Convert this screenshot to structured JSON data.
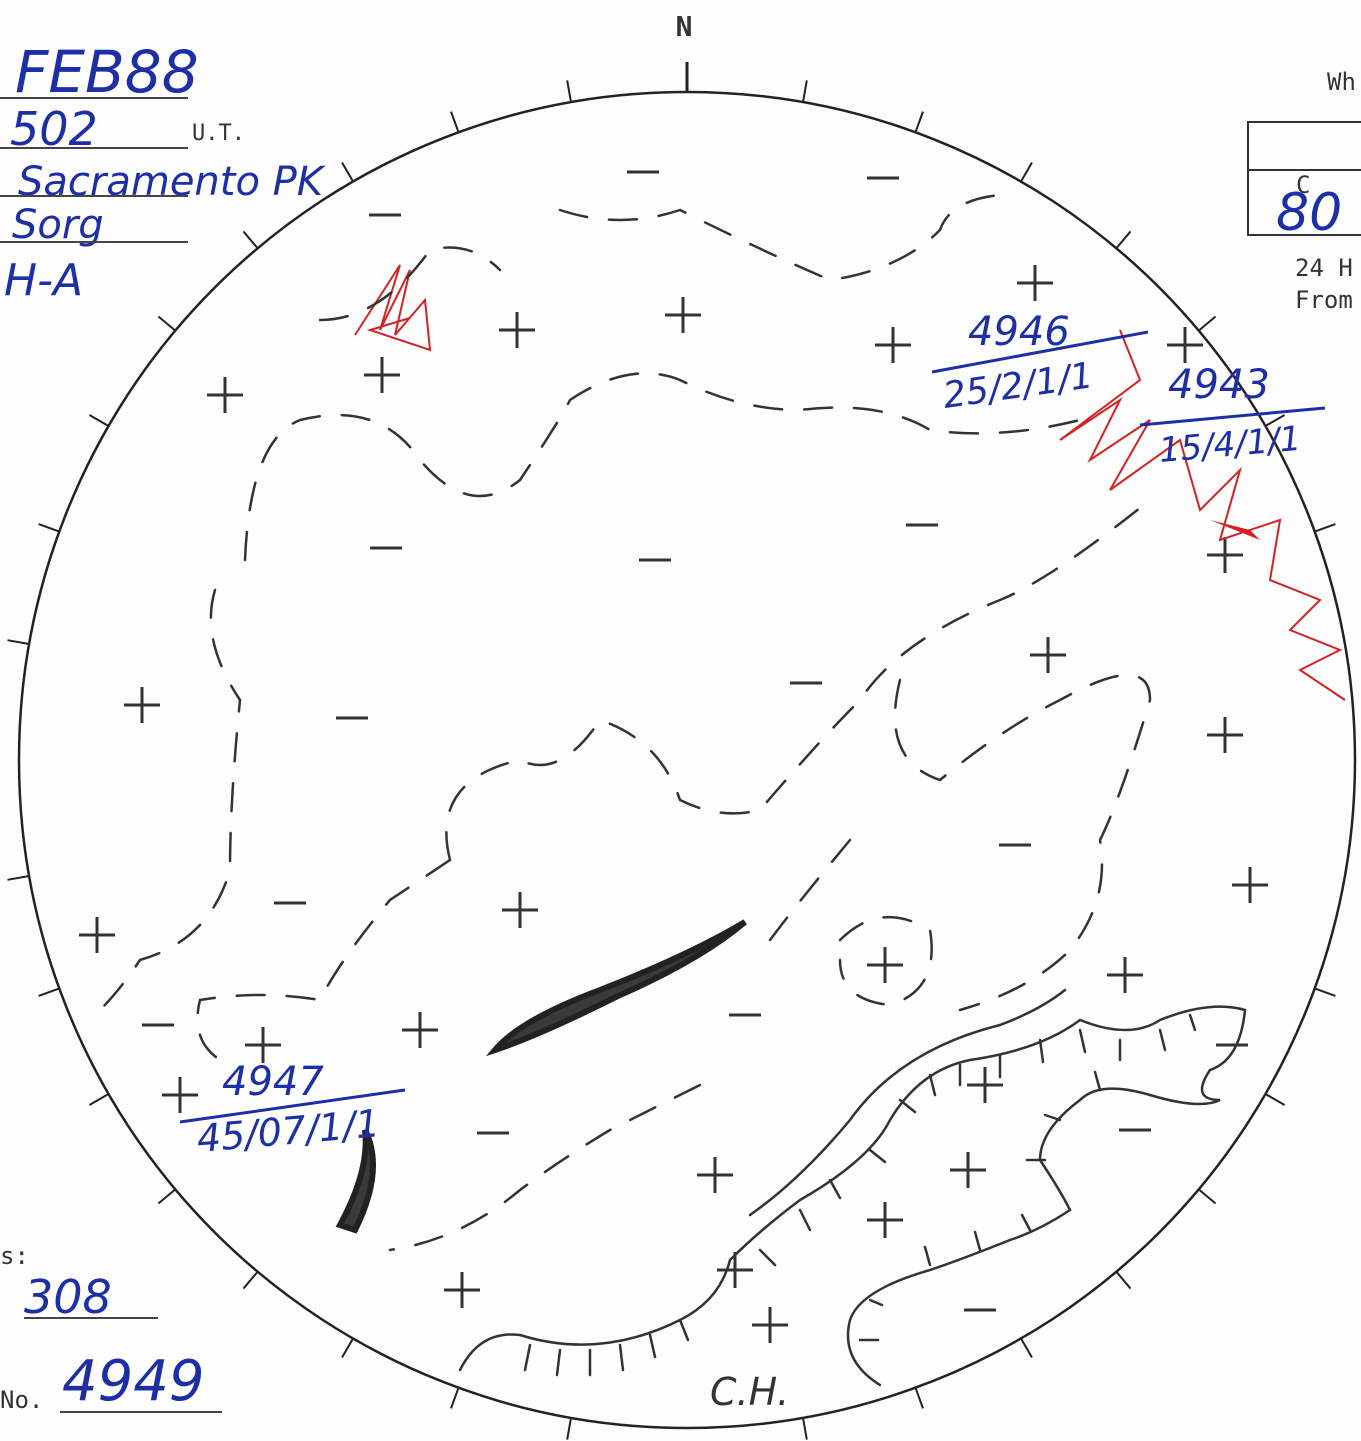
{
  "north": "N",
  "header": {
    "date": "FEB88",
    "time": "502",
    "time_unit": "U.T.",
    "observatory": "Sacramento PK",
    "observer": "Sorg",
    "type": "H-A"
  },
  "box": {
    "heading": "Wh",
    "column": "C",
    "value": "80",
    "note_1": "24 H",
    "note_2": "From"
  },
  "footer": {
    "label_1": "s:",
    "value_1": "308",
    "label_2": "No.",
    "value_2": "4949"
  },
  "regions": [
    {
      "number": "4946",
      "class": "25/2/1/1"
    },
    {
      "number": "4943",
      "class": "15/4/1/1"
    },
    {
      "number": "4947",
      "class": "45/07/1/1"
    }
  ],
  "annotations": [
    "C.H."
  ]
}
